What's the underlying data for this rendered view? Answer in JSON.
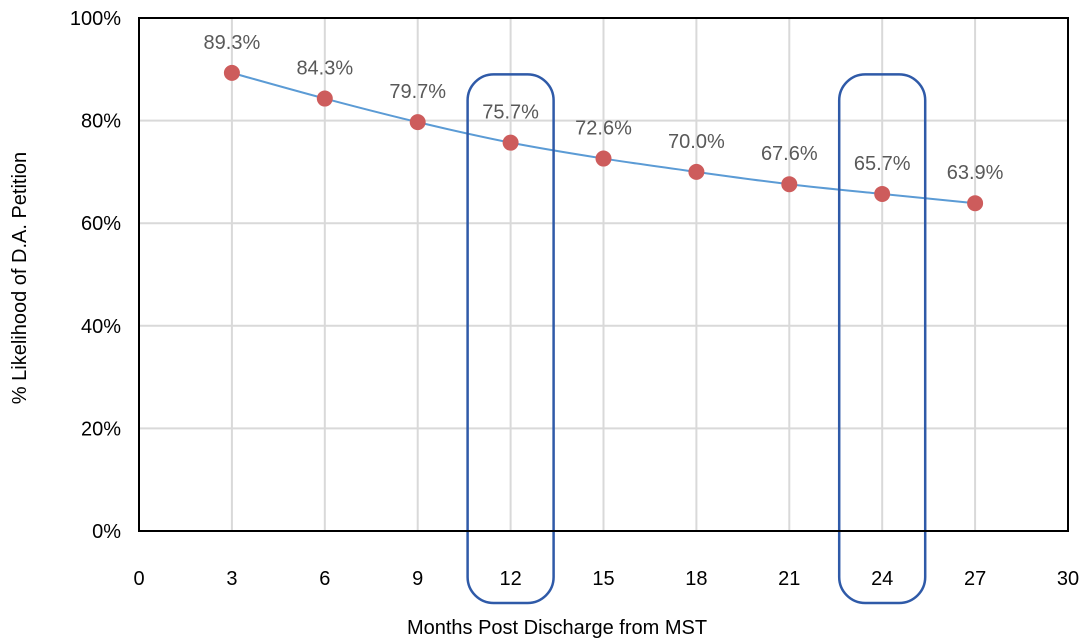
{
  "chart_data": {
    "type": "scatter",
    "title": "",
    "xlabel": "Months Post Discharge from MST",
    "ylabel": "% Likelihood of D.A. Petition",
    "xlim": [
      0,
      30
    ],
    "ylim": [
      0,
      100
    ],
    "x_ticks": [
      0,
      3,
      6,
      9,
      12,
      15,
      18,
      21,
      24,
      27,
      30
    ],
    "y_ticks": [
      0,
      20,
      40,
      60,
      80,
      100
    ],
    "x_tick_labels": [
      "0",
      "3",
      "6",
      "9",
      "12",
      "15",
      "18",
      "21",
      "24",
      "27",
      "30"
    ],
    "y_tick_labels": [
      "0%",
      "20%",
      "40%",
      "60%",
      "80%",
      "100%"
    ],
    "grid": true,
    "legend": "none",
    "series": [
      {
        "x": [
          3,
          6,
          9,
          12,
          15,
          18,
          21,
          24,
          27
        ],
        "y": [
          89.3,
          84.3,
          79.7,
          75.7,
          72.6,
          70.0,
          67.6,
          65.7,
          63.9
        ],
        "labels": [
          "89.3%",
          "84.3%",
          "79.7%",
          "75.7%",
          "72.6%",
          "70.0%",
          "67.6%",
          "65.7%",
          "63.9%"
        ],
        "marker_color": "#CD5C5C",
        "line_color": "#5B9BD5"
      }
    ],
    "highlights": [
      12,
      24
    ],
    "highlight_color": "#2F5AA8",
    "grid_color": "#D9D9D9"
  }
}
